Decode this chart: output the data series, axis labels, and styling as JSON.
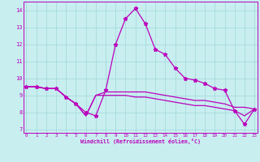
{
  "xlabel": "Windchill (Refroidissement éolien,°C)",
  "background_color": "#c8eef0",
  "grid_color": "#a0d8d8",
  "line_color": "#bb00bb",
  "hours": [
    0,
    1,
    2,
    3,
    4,
    5,
    6,
    7,
    8,
    9,
    10,
    11,
    12,
    13,
    14,
    15,
    16,
    17,
    18,
    19,
    20,
    21,
    22,
    23
  ],
  "windchill": [
    9.5,
    9.5,
    9.4,
    9.4,
    8.9,
    8.5,
    8.0,
    7.8,
    9.3,
    12.0,
    13.5,
    14.1,
    13.2,
    11.7,
    11.4,
    10.6,
    10.0,
    9.9,
    9.7,
    9.4,
    9.3,
    8.1,
    7.3,
    8.2
  ],
  "line1": [
    9.5,
    9.5,
    9.4,
    9.4,
    8.9,
    8.5,
    7.8,
    9.0,
    9.2,
    9.2,
    9.2,
    9.2,
    9.2,
    9.1,
    9.0,
    8.9,
    8.8,
    8.7,
    8.7,
    8.6,
    8.5,
    8.3,
    8.3,
    8.2
  ],
  "line2": [
    9.5,
    9.5,
    9.4,
    9.4,
    8.9,
    8.5,
    7.8,
    9.0,
    9.0,
    9.0,
    9.0,
    8.9,
    8.9,
    8.8,
    8.7,
    8.6,
    8.5,
    8.4,
    8.4,
    8.3,
    8.2,
    8.1,
    7.8,
    8.2
  ],
  "ylim": [
    6.8,
    14.5
  ],
  "yticks": [
    7,
    8,
    9,
    10,
    11,
    12,
    13,
    14
  ],
  "xlim": [
    -0.3,
    23.3
  ]
}
